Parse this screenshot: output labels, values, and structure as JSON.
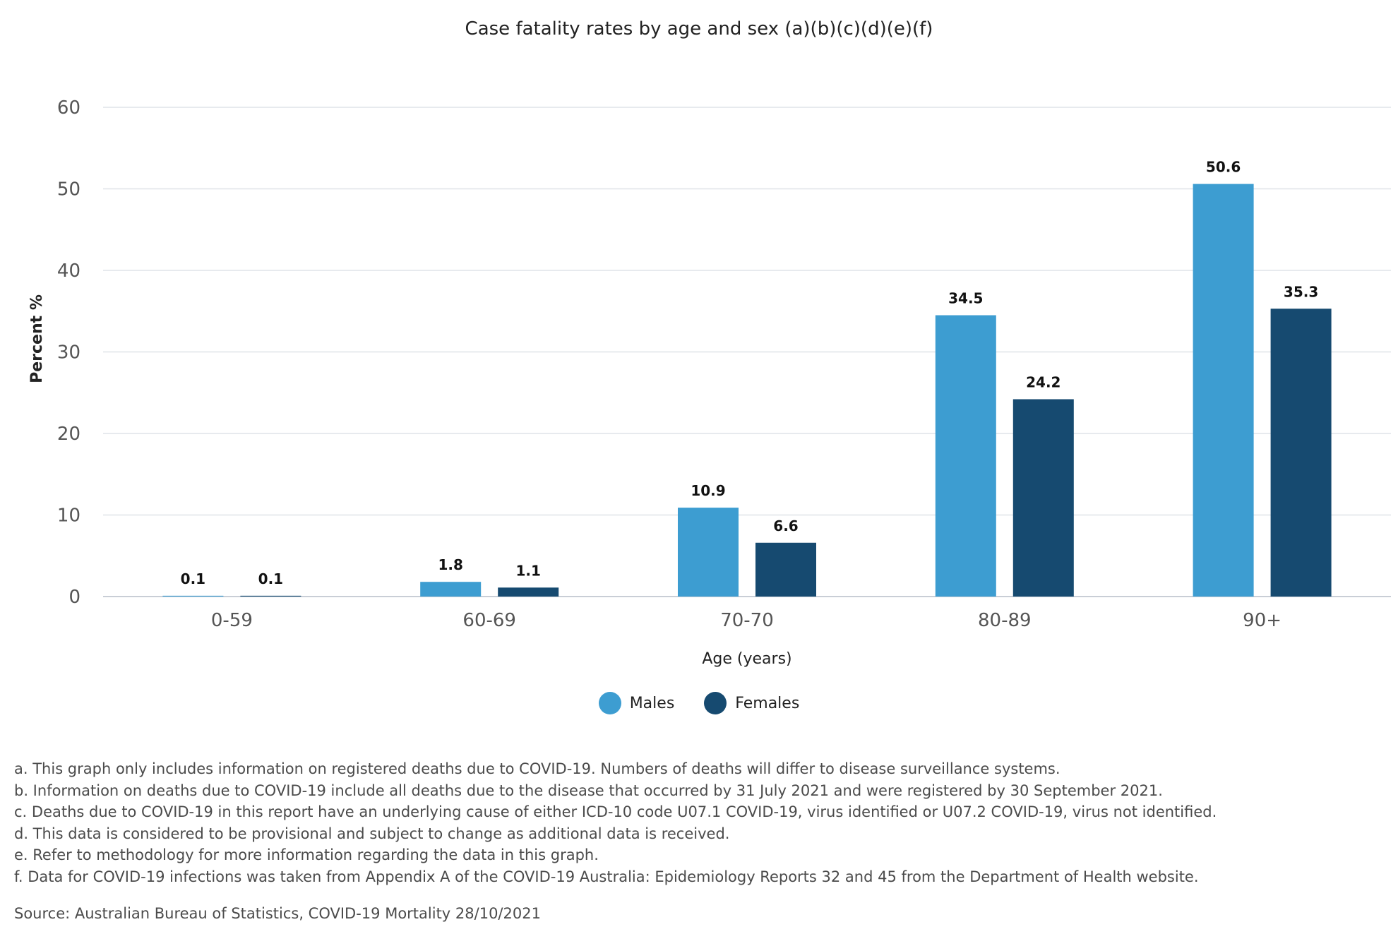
{
  "chart_data": {
    "type": "bar",
    "title": "Case fatality rates by age and sex (a)(b)(c)(d)(e)(f)",
    "xlabel": "Age (years)",
    "ylabel": "Percent %",
    "ylim": [
      0,
      60
    ],
    "yticks": [
      "0",
      "10",
      "20",
      "30",
      "40",
      "50",
      "60"
    ],
    "grid": true,
    "legend_position": "bottom-center",
    "categories": [
      "0-59",
      "60-69",
      "70-70",
      "80-89",
      "90+"
    ],
    "series": [
      {
        "name": "Males",
        "color": "#3d9dd1",
        "values": [
          0.1,
          1.8,
          10.9,
          34.5,
          50.6
        ],
        "labels": [
          "0.1",
          "1.8",
          "10.9",
          "34.5",
          "50.6"
        ]
      },
      {
        "name": "Females",
        "color": "#164a70",
        "values": [
          0.1,
          1.1,
          6.6,
          24.2,
          35.3
        ],
        "labels": [
          "0.1",
          "1.1",
          "6.6",
          "24.2",
          "35.3"
        ]
      }
    ]
  },
  "notes": [
    "a. This graph only includes information on registered deaths due to COVID-19. Numbers of deaths will differ to disease surveillance systems.",
    "b. Information on deaths due to COVID-19 include all deaths due to the disease that occurred by 31 July 2021 and were registered by 30 September 2021.",
    "c. Deaths due to COVID-19 in this report have an underlying cause of either ICD-10 code U07.1 COVID-19, virus identified or U07.2 COVID-19, virus not identified.",
    "d. This data is considered to be provisional and subject to change as additional data is received.",
    "e. Refer to methodology for more information regarding the data in this graph.",
    "f. Data for COVID-19 infections was taken from Appendix A of the COVID-19 Australia: Epidemiology Reports 32 and 45 from the Department of Health website."
  ],
  "source": "Source: Australian Bureau of Statistics, COVID-19 Mortality 28/10/2021"
}
